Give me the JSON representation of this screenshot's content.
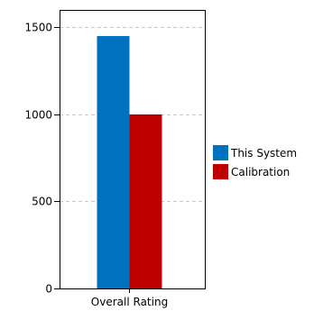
{
  "chart_data": {
    "type": "bar",
    "categories": [
      "Overall Rating"
    ],
    "series": [
      {
        "name": "This System",
        "values": [
          1450
        ],
        "color": "#0070c0"
      },
      {
        "name": "Calibration",
        "values": [
          1000
        ],
        "color": "#c00000"
      }
    ],
    "title": "",
    "xlabel": "",
    "ylabel": "",
    "ylim": [
      0,
      1600
    ],
    "yticks": [
      0,
      500,
      1000,
      1500
    ],
    "grid": true,
    "legend_position": "right"
  }
}
